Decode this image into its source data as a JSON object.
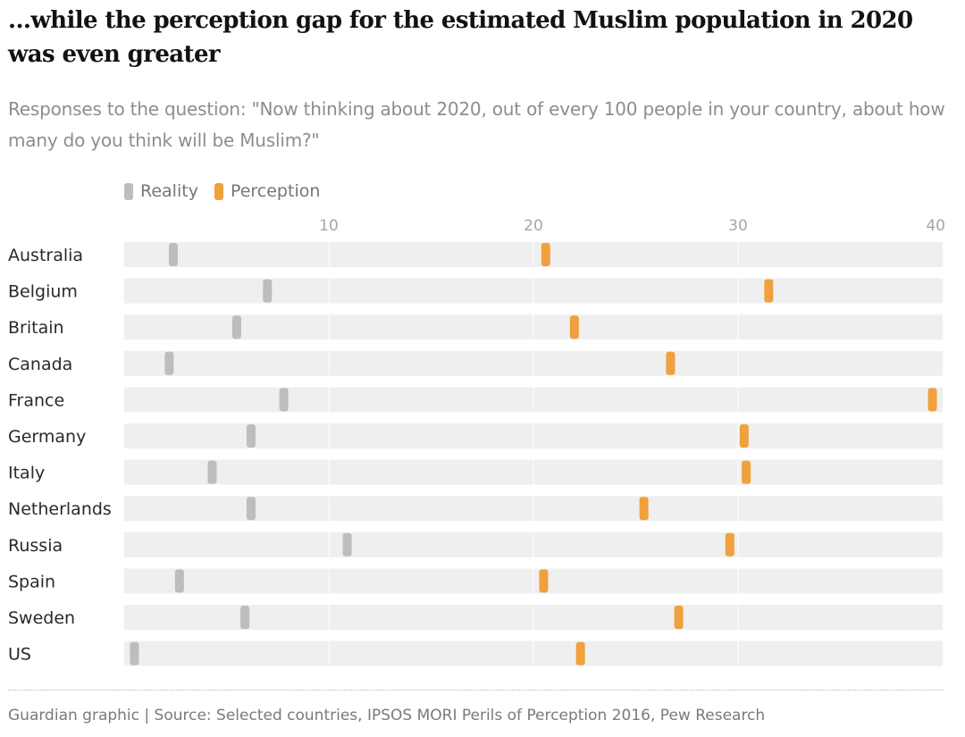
{
  "header": {
    "title": "...while the perception gap for the estimated Muslim population in 2020 was even greater",
    "subtitle": "Responses to the question: \"Now thinking about 2020, out of every 100 people in your country, about how many do you think will be Muslim?\""
  },
  "legend": {
    "reality_label": "Reality",
    "perception_label": "Perception"
  },
  "colors": {
    "reality": "#bdbdbd",
    "perception": "#f0a03c",
    "row_background": "#efefef",
    "grid": "#ffffff"
  },
  "chart_data": {
    "type": "dot-range",
    "title": "...while the perception gap for the estimated Muslim population in 2020 was even greater",
    "subtitle": "Responses to the question: \"Now thinking about 2020, out of every 100 people in your country, about how many do you think will be Muslim?\"",
    "xlim": [
      0,
      40
    ],
    "x_ticks": [
      10,
      20,
      30,
      40
    ],
    "grid": true,
    "legend_position": "top-left",
    "categories": [
      "Australia",
      "Belgium",
      "Britain",
      "Canada",
      "France",
      "Germany",
      "Italy",
      "Netherlands",
      "Russia",
      "Spain",
      "Sweden",
      "US"
    ],
    "series": [
      {
        "name": "Reality",
        "color": "#bdbdbd",
        "values": [
          2.4,
          7.0,
          5.5,
          2.2,
          7.8,
          6.2,
          4.3,
          6.2,
          10.9,
          2.7,
          5.9,
          0.5
        ]
      },
      {
        "name": "Perception",
        "color": "#f0a03c",
        "values": [
          20.6,
          31.5,
          22.0,
          26.7,
          39.5,
          30.3,
          30.4,
          25.4,
          29.6,
          20.5,
          27.1,
          22.3
        ]
      }
    ]
  },
  "footer": {
    "source": "Guardian graphic | Source: Selected countries, IPSOS MORI Perils of Perception 2016, Pew Research"
  }
}
